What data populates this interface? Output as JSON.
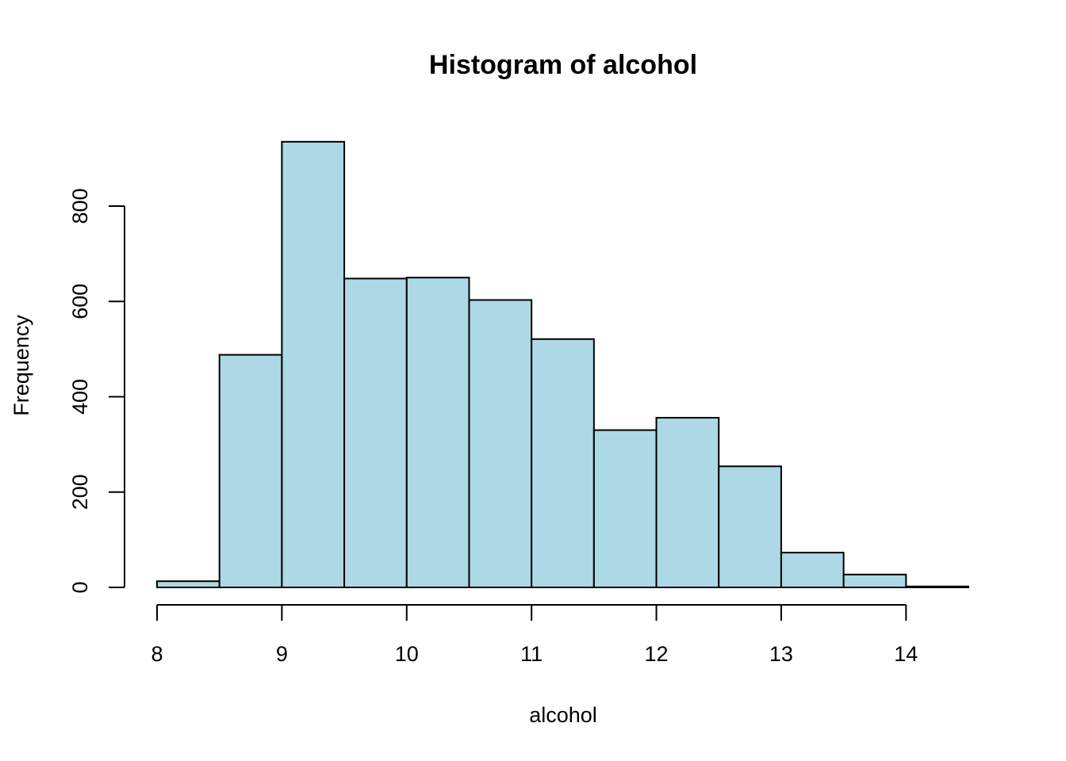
{
  "chart_data": {
    "type": "bar",
    "subtype": "histogram",
    "title": "Histogram of alcohol",
    "xlabel": "alcohol",
    "ylabel": "Frequency",
    "bar_color": "#add8e6",
    "bin_edges": [
      8.0,
      8.5,
      9.0,
      9.5,
      10.0,
      10.5,
      11.0,
      11.5,
      12.0,
      12.5,
      13.0,
      13.5,
      14.0,
      14.5
    ],
    "values": [
      13,
      488,
      935,
      648,
      650,
      603,
      521,
      330,
      356,
      254,
      73,
      27,
      2
    ],
    "xlim": [
      8,
      14.5
    ],
    "ylim": [
      0,
      935
    ],
    "x_ticks": [
      8,
      9,
      10,
      11,
      12,
      13,
      14
    ],
    "x_tick_labels": [
      "8",
      "9",
      "10",
      "11",
      "12",
      "13",
      "14"
    ],
    "y_ticks": [
      0,
      200,
      400,
      600,
      800
    ],
    "y_tick_labels": [
      "0",
      "200",
      "400",
      "600",
      "800"
    ],
    "grid": false,
    "legend": "none"
  }
}
